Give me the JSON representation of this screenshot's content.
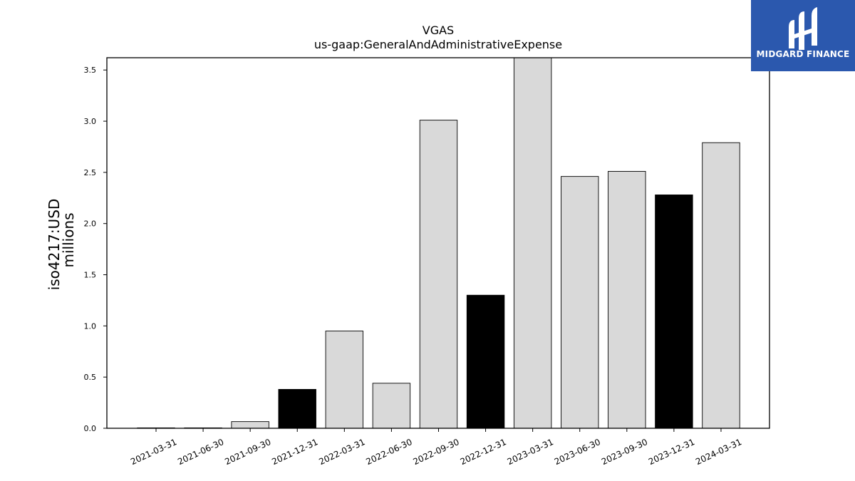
{
  "chart_data": {
    "type": "bar",
    "title": "VGAS",
    "subtitle": "us-gaap:GeneralAndAdministrativeExpense",
    "ylabel": "iso4217:USD",
    "ylabel2": "millions",
    "categories": [
      "2021-03-31",
      "2021-06-30",
      "2021-09-30",
      "2021-12-31",
      "2022-03-31",
      "2022-06-30",
      "2022-09-30",
      "2022-12-31",
      "2023-03-31",
      "2023-06-30",
      "2023-09-30",
      "2023-12-31",
      "2024-03-31"
    ],
    "values": [
      0.004,
      0.004,
      0.065,
      0.38,
      0.95,
      0.44,
      3.01,
      1.3,
      3.64,
      2.46,
      2.51,
      2.28,
      2.79
    ],
    "highlight": [
      false,
      false,
      false,
      true,
      false,
      false,
      false,
      true,
      false,
      false,
      false,
      true,
      false
    ],
    "colors": {
      "normal": "#d9d9d9",
      "highlight": "#000000",
      "edge": "#000000"
    },
    "ylim": [
      0,
      3.62
    ],
    "yticks": [
      "0.0",
      "0.5",
      "1.0",
      "1.5",
      "2.0",
      "2.5",
      "3.0",
      "3.5"
    ],
    "grid": false
  },
  "logo": {
    "text": "MIDGARD FINANCE",
    "background": "#2b58ae"
  }
}
